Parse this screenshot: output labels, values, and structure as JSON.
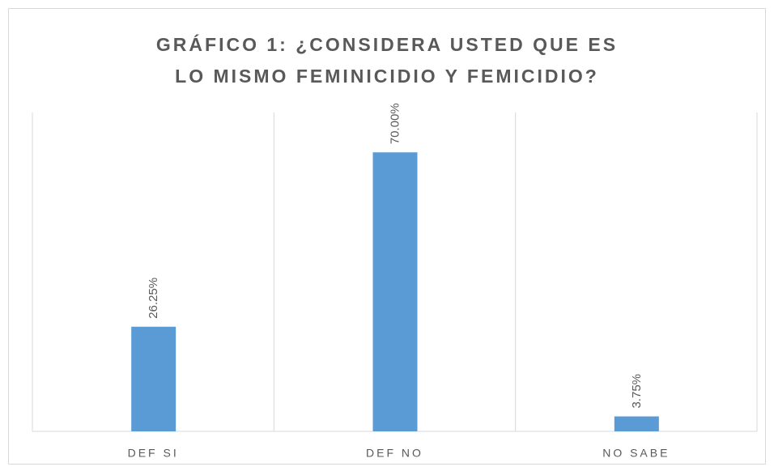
{
  "chart_data": {
    "type": "bar",
    "title": "GRÁFICO 1: ¿CONSIDERA USTED QUE ES LO MISMO FEMINICIDIO Y FEMICIDIO?",
    "categories": [
      "DEF SI",
      "DEF NO",
      "NO SABE"
    ],
    "values": [
      26.25,
      70,
      3.75
    ],
    "value_labels": [
      "26.25%",
      "70.00%",
      "3.75%"
    ],
    "color": "#5b9bd5",
    "ylim": [
      0,
      80
    ]
  }
}
